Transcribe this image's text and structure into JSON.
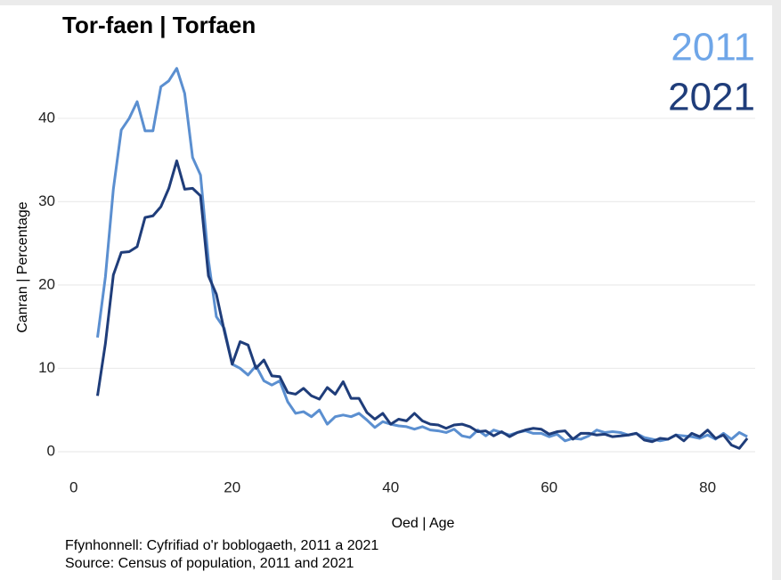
{
  "chart_data": {
    "type": "line",
    "title": "Tor-faen | Torfaen",
    "xlabel": "Oed | Age",
    "ylabel": "Canran | Percentage",
    "source": [
      "Ffynhonnell: Cyfrifiad o'r boblogaeth, 2011 a 2021",
      "Source: Census of population, 2011 and 2021"
    ],
    "x": [
      3,
      4,
      5,
      6,
      7,
      8,
      9,
      10,
      11,
      12,
      13,
      14,
      15,
      16,
      17,
      18,
      19,
      20,
      21,
      22,
      23,
      24,
      25,
      26,
      27,
      28,
      29,
      30,
      31,
      32,
      33,
      34,
      35,
      36,
      37,
      38,
      39,
      40,
      41,
      42,
      43,
      44,
      45,
      46,
      47,
      48,
      49,
      50,
      51,
      52,
      53,
      54,
      55,
      56,
      57,
      58,
      59,
      60,
      61,
      62,
      63,
      64,
      65,
      66,
      67,
      68,
      69,
      70,
      71,
      72,
      73,
      74,
      75,
      76,
      77,
      78,
      79,
      80,
      81,
      82,
      83,
      84,
      85
    ],
    "series": [
      {
        "name": "2011",
        "color": "#5b8fd0",
        "legend_color": "#6fa6e8",
        "values": [
          13.7,
          21,
          31.5,
          38.6,
          40,
          42,
          38.5,
          38.5,
          43.8,
          44.5,
          46,
          43,
          35.3,
          33.2,
          23,
          16.2,
          14.8,
          10.5,
          10.0,
          9.2,
          10.3,
          8.5,
          8,
          8.5,
          6,
          4.6,
          4.8,
          4.2,
          5,
          3.3,
          4.2,
          4.4,
          4.2,
          4.6,
          3.8,
          2.9,
          3.6,
          3.3,
          3.1,
          3.0,
          2.7,
          3.0,
          2.6,
          2.5,
          2.3,
          2.7,
          1.9,
          1.7,
          2.6,
          1.9,
          2.6,
          2.3,
          2.0,
          2.3,
          2.5,
          2.2,
          2.2,
          1.8,
          2.1,
          1.3,
          1.6,
          1.5,
          1.9,
          2.6,
          2.3,
          2.4,
          2.3,
          2.0,
          2.2,
          1.7,
          1.5,
          1.3,
          1.5,
          2.0,
          1.9,
          1.8,
          1.6,
          2.0,
          1.5,
          2.2,
          1.5,
          2.3,
          1.8
        ]
      },
      {
        "name": "2021",
        "color": "#1f3d7a",
        "legend_color": "#1f3d7a",
        "values": [
          6.7,
          13,
          21.2,
          23.9,
          24,
          24.6,
          28.1,
          28.3,
          29.4,
          31.6,
          34.9,
          31.5,
          31.6,
          30.7,
          21.1,
          18.9,
          14.5,
          10.5,
          13.2,
          12.8,
          10,
          11,
          9.1,
          9.0,
          7.1,
          6.9,
          7.6,
          6.7,
          6.3,
          7.7,
          6.9,
          8.4,
          6.4,
          6.4,
          4.7,
          3.9,
          4.6,
          3.3,
          3.9,
          3.7,
          4.6,
          3.7,
          3.3,
          3.2,
          2.8,
          3.2,
          3.3,
          3.0,
          2.4,
          2.5,
          1.9,
          2.4,
          1.8,
          2.3,
          2.6,
          2.8,
          2.7,
          2.1,
          2.4,
          2.5,
          1.5,
          2.2,
          2.2,
          2.0,
          2.1,
          1.8,
          1.9,
          2.0,
          2.2,
          1.4,
          1.2,
          1.6,
          1.5,
          2.0,
          1.3,
          2.2,
          1.8,
          2.6,
          1.6,
          2.0,
          0.8,
          0.4,
          1.6
        ]
      }
    ],
    "xlim": [
      -2,
      86
    ],
    "xticks": [
      0,
      20,
      40,
      60,
      80
    ],
    "ylim": [
      -1.5,
      48
    ],
    "yticks": [
      0,
      10,
      20,
      30,
      40
    ],
    "grid": true,
    "legend": "upper right"
  }
}
